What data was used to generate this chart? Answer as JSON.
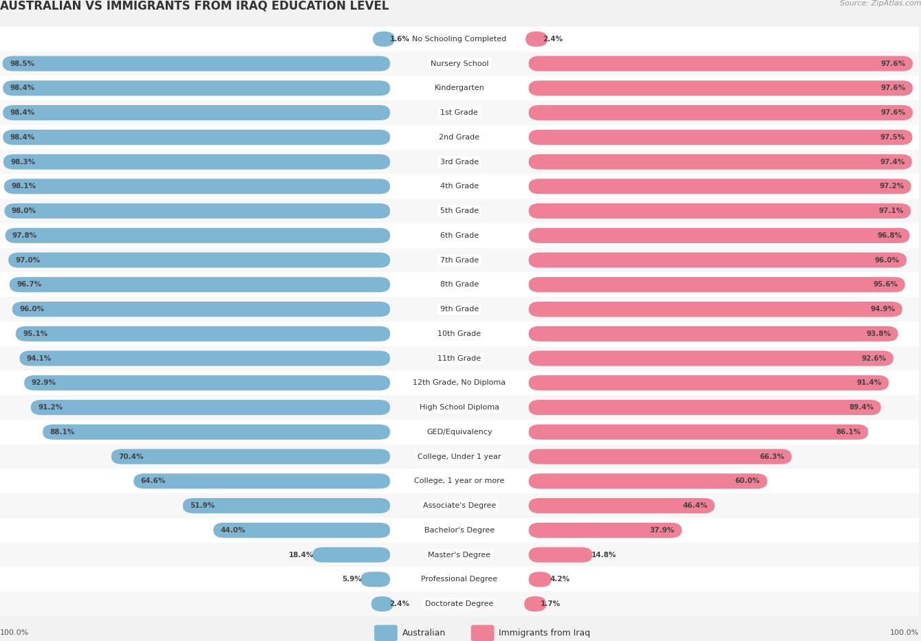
{
  "title": "AUSTRALIAN VS IMMIGRANTS FROM IRAQ EDUCATION LEVEL",
  "source": "Source: ZipAtlas.com",
  "categories": [
    "No Schooling Completed",
    "Nursery School",
    "Kindergarten",
    "1st Grade",
    "2nd Grade",
    "3rd Grade",
    "4th Grade",
    "5th Grade",
    "6th Grade",
    "7th Grade",
    "8th Grade",
    "9th Grade",
    "10th Grade",
    "11th Grade",
    "12th Grade, No Diploma",
    "High School Diploma",
    "GED/Equivalency",
    "College, Under 1 year",
    "College, 1 year or more",
    "Associate's Degree",
    "Bachelor's Degree",
    "Master's Degree",
    "Professional Degree",
    "Doctorate Degree"
  ],
  "australian": [
    1.6,
    98.5,
    98.4,
    98.4,
    98.4,
    98.3,
    98.1,
    98.0,
    97.8,
    97.0,
    96.7,
    96.0,
    95.1,
    94.1,
    92.9,
    91.2,
    88.1,
    70.4,
    64.6,
    51.9,
    44.0,
    18.4,
    5.9,
    2.4
  ],
  "iraq": [
    2.4,
    97.6,
    97.6,
    97.6,
    97.5,
    97.4,
    97.2,
    97.1,
    96.8,
    96.0,
    95.6,
    94.9,
    93.8,
    92.6,
    91.4,
    89.4,
    86.1,
    66.3,
    60.0,
    46.4,
    37.9,
    14.8,
    4.2,
    1.7
  ],
  "australian_color": "#7eb6d4",
  "iraq_color": "#f08096",
  "bg_color": "#f2f2f2",
  "title_fontsize": 12,
  "label_fontsize": 8.0,
  "value_fontsize": 7.5,
  "legend_fontsize": 9,
  "source_fontsize": 8
}
